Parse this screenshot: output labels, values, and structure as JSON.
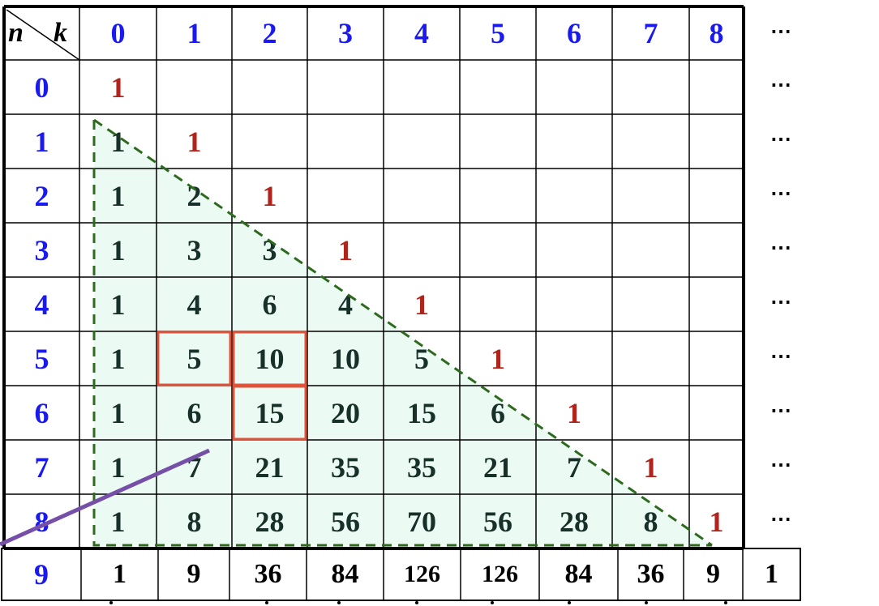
{
  "corner": {
    "row_label": "n",
    "col_label": "k"
  },
  "col_headers": [
    "0",
    "1",
    "2",
    "3",
    "4",
    "5",
    "6",
    "7",
    "8"
  ],
  "row_headers": [
    "0",
    "1",
    "2",
    "3",
    "4",
    "5",
    "6",
    "7",
    "8"
  ],
  "rows": [
    [
      "1"
    ],
    [
      "1",
      "1"
    ],
    [
      "1",
      "2",
      "1"
    ],
    [
      "1",
      "3",
      "3",
      "1"
    ],
    [
      "1",
      "4",
      "6",
      "4",
      "1"
    ],
    [
      "1",
      "5",
      "10",
      "10",
      "5",
      "1"
    ],
    [
      "1",
      "6",
      "15",
      "20",
      "15",
      "6",
      "1"
    ],
    [
      "1",
      "7",
      "21",
      "35",
      "35",
      "21",
      "7",
      "1"
    ],
    [
      "1",
      "8",
      "28",
      "56",
      "70",
      "56",
      "28",
      "8",
      "1"
    ]
  ],
  "row9": {
    "label": "9",
    "values": [
      "1",
      "9",
      "36",
      "84",
      "126",
      "126",
      "84",
      "36",
      "9",
      "1"
    ]
  },
  "ellipsis": "⋯",
  "highlighted_cells": [
    [
      5,
      1
    ],
    [
      5,
      2
    ],
    [
      6,
      2
    ]
  ],
  "colors": {
    "header": "#1a1af0",
    "edge_one": "#b0241c",
    "value": "#17302a",
    "triangle_fill": "#ebfbf3",
    "triangle_stroke": "#2d6a1e",
    "highlight": "#e0533a",
    "line": "#7650a8"
  }
}
